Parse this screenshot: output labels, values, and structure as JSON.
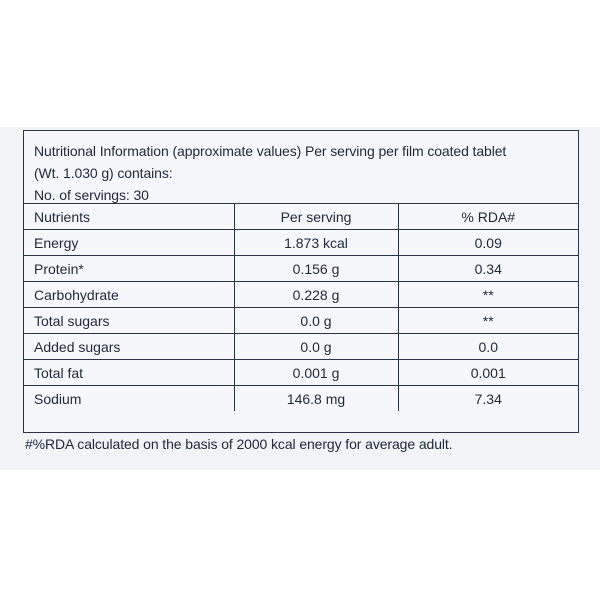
{
  "intro": {
    "line1": "Nutritional Information (approximate values) Per serving per film coated tablet",
    "line2": "(Wt. 1.030 g) contains:",
    "line3": "No. of servings: 30"
  },
  "table": {
    "headers": [
      "Nutrients",
      "Per serving",
      "% RDA#"
    ],
    "rows": [
      {
        "nutrient": "Energy",
        "per_serving": "1.873 kcal",
        "rda": "0.09"
      },
      {
        "nutrient": "Protein*",
        "per_serving": "0.156 g",
        "rda": "0.34"
      },
      {
        "nutrient": "Carbohydrate",
        "per_serving": "0.228 g",
        "rda": "**"
      },
      {
        "nutrient": "Total sugars",
        "per_serving": "0.0 g",
        "rda": "**"
      },
      {
        "nutrient": "Added sugars",
        "per_serving": "0.0 g",
        "rda": "0.0"
      },
      {
        "nutrient": "Total fat",
        "per_serving": "0.001 g",
        "rda": "0.001"
      },
      {
        "nutrient": "Sodium",
        "per_serving": "146.8 mg",
        "rda": "7.34"
      }
    ]
  },
  "footnote": "#%RDA calculated on the basis of 2000 kcal energy for average adult."
}
